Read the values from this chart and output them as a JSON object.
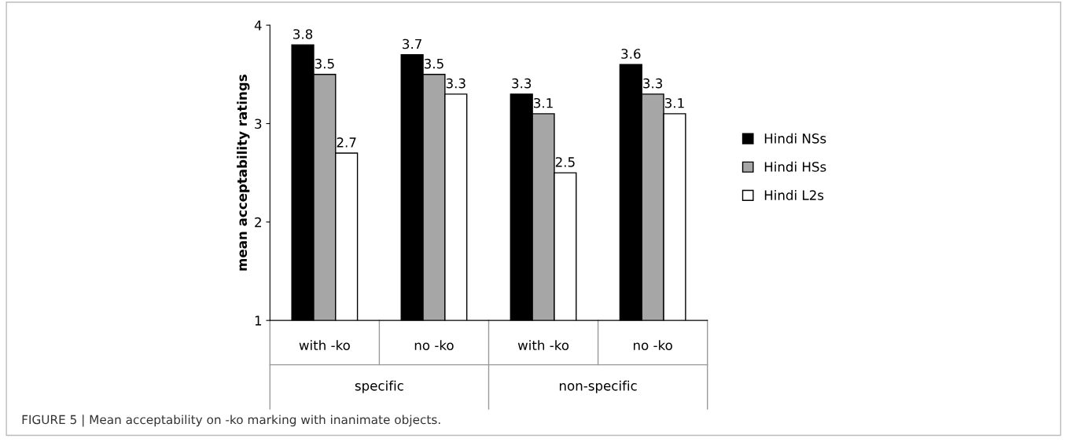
{
  "chart_data": {
    "type": "bar",
    "ylabel": "mean acceptability ratings",
    "categories": [
      "with -ko",
      "no -ko",
      "with -ko",
      "no -ko"
    ],
    "series": [
      {
        "name": "Hindi NSs",
        "color": "#000000",
        "values": [
          3.8,
          3.7,
          3.3,
          3.6
        ]
      },
      {
        "name": "Hindi HSs",
        "color": "#a6a6a6",
        "values": [
          3.5,
          3.5,
          3.1,
          3.3
        ]
      },
      {
        "name": "Hindi L2s",
        "color": "#ffffff",
        "values": [
          2.7,
          3.3,
          2.5,
          3.1
        ]
      }
    ],
    "ylim": [
      1,
      4
    ],
    "yticks": [
      1,
      2,
      3,
      4
    ],
    "data_labels": true,
    "grid": false,
    "legend": "right",
    "annotations": [
      "specific",
      "non-specific",
      "FIGURE 5 | Mean acceptability on -ko marking with inanimate objects."
    ]
  }
}
